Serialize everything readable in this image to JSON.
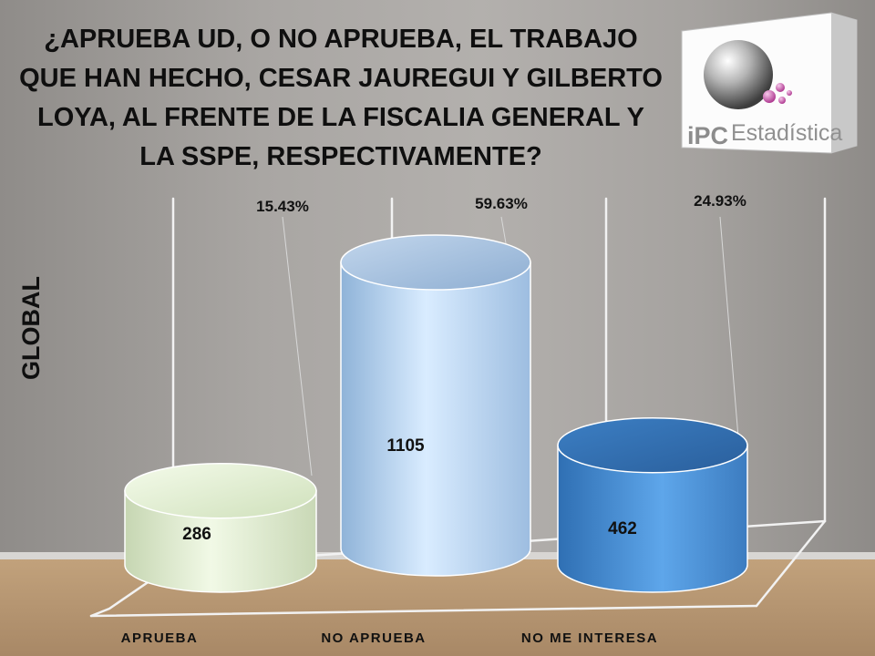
{
  "title": "¿APRUEBA UD, O NO APRUEBA, EL TRABAJO QUE HAN HECHO, CESAR JAUREGUI Y GILBERTO LOYA, AL FRENTE DE LA FISCALIA GENERAL Y LA SSPE, RESPECTIVAMENTE?",
  "side_label": "GLOBAL",
  "logo": {
    "text_ipc": "iPC",
    "text_est": "Estadística",
    "icon": "ipc-estadistica-logo"
  },
  "colors": {
    "aprueba": "#e4f0d6",
    "no_aprueba": "#bcd6f0",
    "no_me_interesa": "#4d8fd1"
  },
  "chart_data": {
    "type": "bar",
    "title": "¿APRUEBA UD, O NO APRUEBA, EL TRABAJO QUE HAN HECHO, CESAR JAUREGUI Y GILBERTO LOYA, AL FRENTE DE LA FISCALIA GENERAL Y LA SSPE, RESPECTIVAMENTE?",
    "ylabel": "GLOBAL",
    "categories": [
      "APRUEBA",
      "NO APRUEBA",
      "NO ME INTERESA"
    ],
    "values": [
      286,
      1105,
      462
    ],
    "percent_labels": [
      "15.43%",
      "59.63%",
      "24.93%"
    ],
    "value_labels": [
      "286",
      "1105",
      "462"
    ],
    "ylim": [
      0,
      1220
    ],
    "grid": false,
    "legend": "none",
    "style": "3d-cylinder"
  }
}
